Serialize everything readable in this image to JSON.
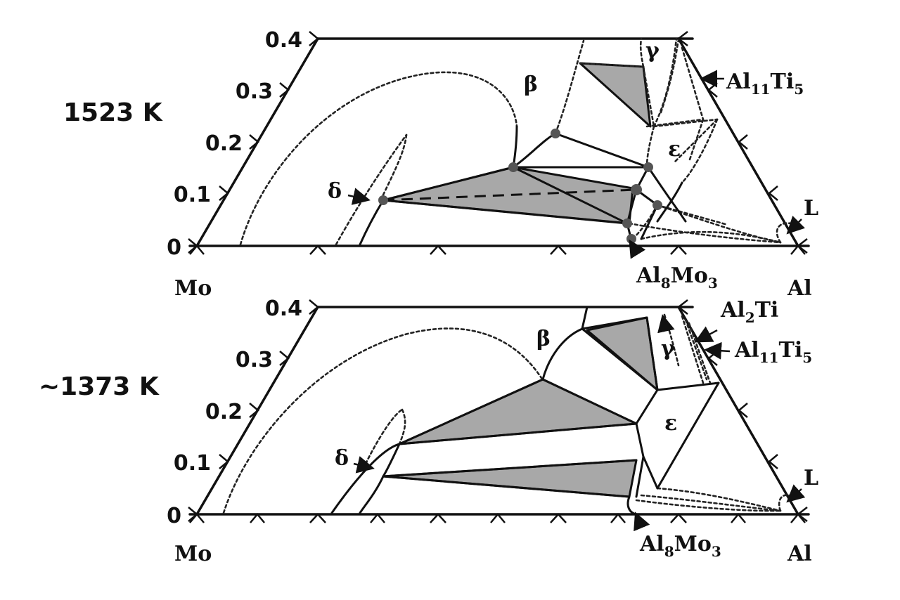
{
  "panels": [
    {
      "temperature": "1523 K",
      "y_ticks": [
        "0",
        "0.1",
        "0.2",
        "0.3",
        "0.4"
      ],
      "left_corner": "Mo",
      "right_corner": "Al",
      "phases": [
        "β",
        "γ",
        "ε",
        "δ",
        "L"
      ],
      "compounds": {
        "al11ti5_base": "Al",
        "al11ti5_sub1": "11",
        "al11ti5_mid": "Ti",
        "al11ti5_sub2": "5",
        "al8mo3_base": "Al",
        "al8mo3_sub1": "8",
        "al8mo3_mid": "Mo",
        "al8mo3_sub2": "3"
      }
    },
    {
      "temperature": "~1373 K",
      "y_ticks": [
        "0",
        "0.1",
        "0.2",
        "0.3",
        "0.4"
      ],
      "left_corner": "Mo",
      "right_corner": "Al",
      "phases": [
        "β",
        "γ",
        "ε",
        "δ",
        "L"
      ],
      "compounds": {
        "al2ti_base": "Al",
        "al2ti_sub1": "2",
        "al2ti_mid": "Ti",
        "al11ti5_base": "Al",
        "al11ti5_sub1": "11",
        "al11ti5_mid": "Ti",
        "al11ti5_sub2": "5",
        "al8mo3_base": "Al",
        "al8mo3_sub1": "8",
        "al8mo3_mid": "Mo",
        "al8mo3_sub2": "3"
      }
    }
  ]
}
